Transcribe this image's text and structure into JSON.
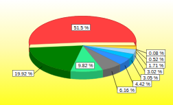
{
  "chart_data": {
    "type": "pie",
    "values": [
      0.08,
      0.52,
      1.71,
      3.02,
      3.05,
      4.42,
      6.16,
      9.82,
      19.92,
      51.5
    ],
    "value_labels": [
      "0.08 %",
      "0.52 %",
      "1.71 %",
      "3.02 %",
      "3.05 %",
      "4.42 %",
      "6.16 %",
      "9.82 %",
      "19.92 %",
      "51.5 %"
    ],
    "colors": [
      "#ff8040",
      "#ffc000",
      "#ffe040",
      "#a0d8ff",
      "#00c0ff",
      "#3090ff",
      "#808080",
      "#30f090",
      "#008000",
      "#ff4040"
    ],
    "data_labels": true
  }
}
